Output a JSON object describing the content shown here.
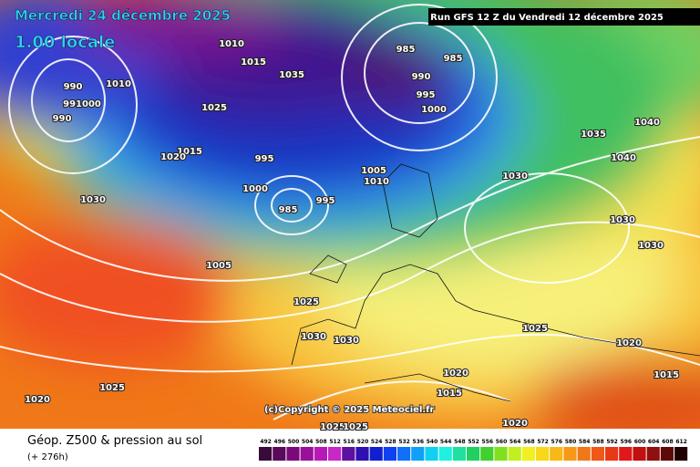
{
  "header": {
    "date": "Mercredi 24 décembre 2025",
    "time": "1.00 locale",
    "run": "Run GFS 12 Z du Vendredi 12 décembre 2025"
  },
  "copyright": "(c)Copyright © 2025 Meteociel.fr",
  "footer": {
    "title": "Géop. Z500 & pression au sol",
    "subtitle": "(+ 276h)"
  },
  "isobar_labels": [
    "990",
    "990",
    "991000",
    "1010",
    "1025",
    "1015",
    "1020",
    "995",
    "1000",
    "985",
    "985",
    "990",
    "995",
    "1000",
    "1005",
    "1010",
    "1030",
    "985",
    "995",
    "1005",
    "1025",
    "1030",
    "1030",
    "1030",
    "1035",
    "1040",
    "1040",
    "1025",
    "1020",
    "1030",
    "1030",
    "1020",
    "1015",
    "1015",
    "1020",
    "1025",
    "1020",
    "1025",
    "1025",
    "1010",
    "1015",
    "1035"
  ],
  "legend": {
    "ticks": [
      492,
      496,
      500,
      504,
      508,
      512,
      516,
      520,
      524,
      528,
      532,
      536,
      540,
      544,
      548,
      552,
      556,
      560,
      564,
      568,
      572,
      576,
      580,
      584,
      588,
      592,
      596,
      600,
      604,
      608,
      612
    ]
  }
}
